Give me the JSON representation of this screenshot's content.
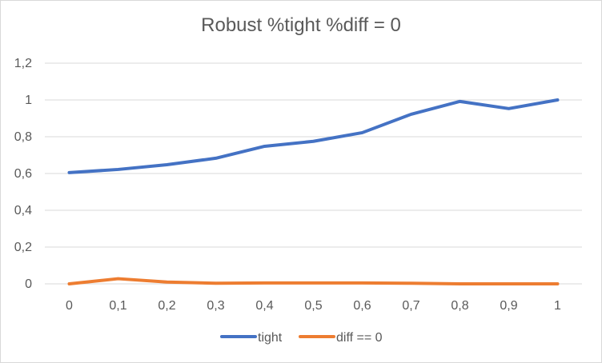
{
  "chart_data": {
    "type": "line",
    "title": "Robust %tight %diff = 0",
    "x": [
      "0",
      "0,1",
      "0,2",
      "0,3",
      "0,4",
      "0,5",
      "0,6",
      "0,7",
      "0,8",
      "0,9",
      "1"
    ],
    "y_ticks": [
      "0",
      "0,2",
      "0,4",
      "0,6",
      "0,8",
      "1",
      "1,2"
    ],
    "ylim": [
      0,
      1.2
    ],
    "grid": true,
    "legend_position": "bottom",
    "series": [
      {
        "name": "tight",
        "color": "#4472c4",
        "values": [
          0.605,
          0.622,
          0.648,
          0.683,
          0.748,
          0.775,
          0.822,
          0.922,
          0.992,
          0.953,
          1.0
        ]
      },
      {
        "name": "diff == 0",
        "color": "#ed7d31",
        "values": [
          0.0,
          0.028,
          0.01,
          0.003,
          0.005,
          0.005,
          0.005,
          0.003,
          0.0,
          0.0,
          0.0
        ]
      }
    ]
  }
}
